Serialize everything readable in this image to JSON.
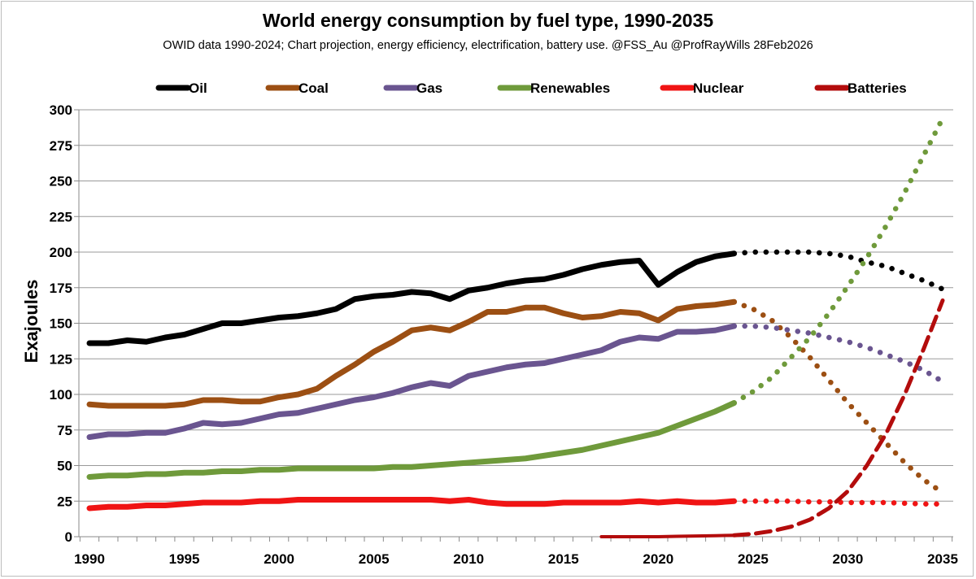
{
  "chart_data": {
    "type": "line",
    "title": "World energy consumption by fuel type, 1990-2035",
    "subtitle": "OWID data 1990-2024;  Chart projection, energy efficiency, electrification, battery use. @FSS_Au @ProfRayWills   28Feb2026",
    "xlabel": "",
    "ylabel": "Exajoules",
    "xlim": [
      1990,
      2035
    ],
    "ylim": [
      0,
      300
    ],
    "xticks": [
      "1990",
      "1995",
      "2000",
      "2005",
      "2010",
      "2015",
      "2020",
      "2025",
      "2030",
      "2035"
    ],
    "yticks": [
      "0",
      "25",
      "50",
      "75",
      "100",
      "125",
      "150",
      "175",
      "200",
      "225",
      "250",
      "275",
      "300"
    ],
    "grid": true,
    "legend_position": "top",
    "series": [
      {
        "name": "Oil",
        "color": "#000000",
        "start": 1990,
        "values": [
          136,
          136,
          138,
          137,
          140,
          142,
          146,
          150,
          150,
          152,
          154,
          155,
          157,
          160,
          167,
          169,
          170,
          172,
          171,
          167,
          173,
          175,
          178,
          180,
          181,
          184,
          188,
          191,
          193,
          194,
          177,
          186,
          193,
          197,
          199
        ],
        "projection_style": "dotted",
        "projection_start": 2024,
        "projection": [
          199,
          200,
          200,
          200,
          200,
          199,
          197,
          193,
          190,
          185,
          180,
          174
        ]
      },
      {
        "name": "Coal",
        "color": "#9c4f13",
        "start": 1990,
        "values": [
          93,
          92,
          92,
          92,
          92,
          93,
          96,
          96,
          95,
          95,
          98,
          100,
          104,
          113,
          121,
          130,
          137,
          145,
          147,
          145,
          151,
          158,
          158,
          161,
          161,
          157,
          154,
          155,
          158,
          157,
          152,
          160,
          162,
          163,
          165
        ],
        "projection_style": "dotted",
        "projection_start": 2024,
        "projection": [
          165,
          160,
          152,
          140,
          126,
          110,
          94,
          80,
          66,
          52,
          40,
          31
        ]
      },
      {
        "name": "Gas",
        "color": "#6a5590",
        "start": 1990,
        "values": [
          70,
          72,
          72,
          73,
          73,
          76,
          80,
          79,
          80,
          83,
          86,
          87,
          90,
          93,
          96,
          98,
          101,
          105,
          108,
          106,
          113,
          116,
          119,
          121,
          122,
          125,
          128,
          131,
          137,
          140,
          139,
          144,
          144,
          145,
          148
        ],
        "projection_style": "dotted",
        "projection_start": 2024,
        "projection": [
          148,
          148,
          147,
          145,
          143,
          140,
          137,
          133,
          128,
          123,
          117,
          109
        ]
      },
      {
        "name": "Renewables",
        "color": "#6f9a3b",
        "start": 1990,
        "values": [
          42,
          43,
          43,
          44,
          44,
          45,
          45,
          46,
          46,
          47,
          47,
          48,
          48,
          48,
          48,
          48,
          49,
          49,
          50,
          51,
          52,
          53,
          54,
          55,
          57,
          59,
          61,
          64,
          67,
          70,
          73,
          78,
          83,
          88,
          94
        ],
        "projection_style": "dotted",
        "projection_start": 2024,
        "projection": [
          94,
          102,
          112,
          126,
          140,
          157,
          176,
          196,
          218,
          242,
          268,
          294
        ]
      },
      {
        "name": "Nuclear",
        "color": "#f01414",
        "start": 1990,
        "values": [
          20,
          21,
          21,
          22,
          22,
          23,
          24,
          24,
          24,
          25,
          25,
          26,
          26,
          26,
          26,
          26,
          26,
          26,
          26,
          25,
          26,
          24,
          23,
          23,
          23,
          24,
          24,
          24,
          24,
          25,
          24,
          25,
          24,
          24,
          25
        ],
        "projection_style": "dotted",
        "projection_start": 2024,
        "projection": [
          25,
          25,
          25,
          25,
          24.5,
          24.5,
          24,
          24,
          24,
          23.5,
          23,
          23
        ]
      },
      {
        "name": "Batteries",
        "color": "#b30c0c",
        "start": 2017,
        "values": [
          0,
          0,
          0,
          0,
          0.3,
          0.5,
          0.7,
          1
        ],
        "projection_style": "dashed",
        "projection_start": 2024,
        "projection": [
          1,
          2,
          4,
          7,
          12,
          20,
          32,
          50,
          72,
          100,
          132,
          166
        ]
      }
    ]
  }
}
